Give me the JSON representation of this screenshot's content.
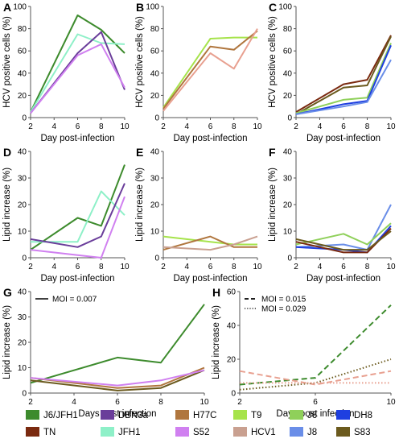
{
  "colors": {
    "J6/JFH1": "#3d8b2d",
    "DBN3a": "#6a3d9a",
    "H77C": "#b0763e",
    "T9": "#a6e34b",
    "J6": "#8fd05a",
    "DH8": "#1f3fe0",
    "TN": "#7a2a10",
    "JFH1": "#8ef0c8",
    "S52": "#d080f0",
    "HCV1": "#c9a090",
    "J8": "#6a8ee8",
    "S83": "#6b5a1e",
    "H_a": "#e8a090"
  },
  "legend": {
    "items": [
      {
        "name": "J6/JFH1",
        "key": "J6/JFH1"
      },
      {
        "name": "DBN3a",
        "key": "DBN3a"
      },
      {
        "name": "H77C",
        "key": "H77C"
      },
      {
        "name": "T9",
        "key": "T9"
      },
      {
        "name": "J6",
        "key": "J6"
      },
      {
        "name": "DH8",
        "key": "DH8"
      },
      {
        "name": "TN",
        "key": "TN"
      },
      {
        "name": "JFH1",
        "key": "JFH1"
      },
      {
        "name": "S52",
        "key": "S52"
      },
      {
        "name": "HCV1",
        "key": "HCV1"
      },
      {
        "name": "J8",
        "key": "J8"
      },
      {
        "name": "S83",
        "key": "S83"
      }
    ]
  },
  "chart_data": [
    {
      "panel": "A",
      "type": "line",
      "ylabel": "HCV positive cells (%)",
      "xlabel": "Day post-infection",
      "xlim": [
        2,
        10
      ],
      "ylim": [
        0,
        100
      ],
      "xticks": [
        2,
        4,
        6,
        8,
        10
      ],
      "yticks": [
        0,
        20,
        40,
        60,
        80,
        100
      ],
      "series": [
        {
          "key": "J6/JFH1",
          "x": [
            2,
            6,
            8,
            10
          ],
          "y": [
            5,
            92,
            79,
            58
          ]
        },
        {
          "key": "JFH1",
          "x": [
            2,
            6,
            8,
            10
          ],
          "y": [
            5,
            75,
            67,
            66
          ]
        },
        {
          "key": "DBN3a",
          "x": [
            2,
            6,
            8,
            10
          ],
          "y": [
            4,
            58,
            77,
            25
          ]
        },
        {
          "key": "S52",
          "x": [
            2,
            6,
            8,
            10
          ],
          "y": [
            4,
            56,
            66,
            27
          ]
        }
      ]
    },
    {
      "panel": "B",
      "type": "line",
      "ylabel": "HCV positive cells (%)",
      "xlabel": "Day post-infection",
      "xlim": [
        2,
        10
      ],
      "ylim": [
        0,
        100
      ],
      "xticks": [
        2,
        4,
        6,
        8,
        10
      ],
      "yticks": [
        0,
        20,
        40,
        60,
        80,
        100
      ],
      "series": [
        {
          "key": "T9",
          "x": [
            2,
            6,
            8,
            10
          ],
          "y": [
            9,
            71,
            72,
            72
          ]
        },
        {
          "key": "H77C",
          "x": [
            2,
            6,
            8,
            10
          ],
          "y": [
            8,
            64,
            61,
            78
          ]
        },
        {
          "key": "H_a",
          "x": [
            2,
            6,
            8,
            10
          ],
          "y": [
            6,
            58,
            44,
            80
          ]
        }
      ]
    },
    {
      "panel": "C",
      "type": "line",
      "ylabel": "HCV positive cells (%)",
      "xlabel": "Day post-infection",
      "xlim": [
        2,
        10
      ],
      "ylim": [
        0,
        100
      ],
      "xticks": [
        2,
        4,
        6,
        8,
        10
      ],
      "yticks": [
        0,
        20,
        40,
        60,
        80,
        100
      ],
      "series": [
        {
          "key": "TN",
          "x": [
            2,
            6,
            8,
            10
          ],
          "y": [
            5,
            30,
            34,
            74
          ]
        },
        {
          "key": "S83",
          "x": [
            2,
            6,
            8,
            10
          ],
          "y": [
            3,
            27,
            29,
            73
          ]
        },
        {
          "key": "J6",
          "x": [
            2,
            6,
            8,
            10
          ],
          "y": [
            4,
            16,
            18,
            67
          ]
        },
        {
          "key": "DH8",
          "x": [
            2,
            6,
            8,
            10
          ],
          "y": [
            3,
            12,
            15,
            65
          ]
        },
        {
          "key": "J8",
          "x": [
            2,
            6,
            8,
            10
          ],
          "y": [
            3,
            10,
            14,
            52
          ]
        }
      ]
    },
    {
      "panel": "D",
      "type": "line",
      "ylabel": "Lipid increase (%)",
      "xlabel": "Day post-infection",
      "xlim": [
        2,
        10
      ],
      "ylim": [
        0,
        40
      ],
      "xticks": [
        2,
        4,
        6,
        8,
        10
      ],
      "yticks": [
        0,
        10,
        20,
        30,
        40
      ],
      "series": [
        {
          "key": "J6/JFH1",
          "x": [
            2,
            6,
            8,
            10
          ],
          "y": [
            3,
            15,
            12,
            35
          ]
        },
        {
          "key": "JFH1",
          "x": [
            2,
            6,
            8,
            10
          ],
          "y": [
            6,
            6,
            25,
            16
          ]
        },
        {
          "key": "DBN3a",
          "x": [
            2,
            6,
            8,
            10
          ],
          "y": [
            7,
            4,
            8,
            28
          ]
        },
        {
          "key": "S52",
          "x": [
            2,
            6,
            8,
            10
          ],
          "y": [
            3,
            1,
            0,
            23
          ]
        }
      ]
    },
    {
      "panel": "E",
      "type": "line",
      "ylabel": "Lipid increase (%)",
      "xlabel": "Day post-infection",
      "xlim": [
        2,
        10
      ],
      "ylim": [
        0,
        40
      ],
      "xticks": [
        2,
        4,
        6,
        8,
        10
      ],
      "yticks": [
        0,
        10,
        20,
        30,
        40
      ],
      "series": [
        {
          "key": "T9",
          "x": [
            2,
            6,
            8,
            10
          ],
          "y": [
            8,
            6,
            5,
            5
          ]
        },
        {
          "key": "H77C",
          "x": [
            2,
            6,
            8,
            10
          ],
          "y": [
            3,
            8,
            4,
            4
          ]
        },
        {
          "key": "HCV1",
          "x": [
            2,
            6,
            8,
            10
          ],
          "y": [
            4,
            3,
            5,
            8
          ]
        }
      ]
    },
    {
      "panel": "F",
      "type": "line",
      "ylabel": "Lipid increase (%)",
      "xlabel": "Day post-infection",
      "xlim": [
        2,
        10
      ],
      "ylim": [
        0,
        40
      ],
      "xticks": [
        2,
        4,
        6,
        8,
        10
      ],
      "yticks": [
        0,
        10,
        20,
        30,
        40
      ],
      "series": [
        {
          "key": "J8",
          "x": [
            2,
            6,
            8,
            10
          ],
          "y": [
            4,
            5,
            3,
            20
          ]
        },
        {
          "key": "J6",
          "x": [
            2,
            6,
            8,
            10
          ],
          "y": [
            5,
            9,
            5,
            13
          ]
        },
        {
          "key": "DH8",
          "x": [
            2,
            6,
            8,
            10
          ],
          "y": [
            4,
            3,
            2,
            12
          ]
        },
        {
          "key": "TN",
          "x": [
            2,
            6,
            8,
            10
          ],
          "y": [
            6,
            2,
            2,
            11
          ]
        },
        {
          "key": "S83",
          "x": [
            2,
            6,
            8,
            10
          ],
          "y": [
            7,
            3,
            3,
            10
          ]
        }
      ]
    },
    {
      "panel": "G",
      "type": "line",
      "ylabel": "Lipid increase (%)",
      "xlabel": "Days post infection",
      "xlim": [
        2,
        10
      ],
      "ylim": [
        0,
        40
      ],
      "xticks": [
        2,
        4,
        6,
        8,
        10
      ],
      "yticks": [
        0,
        10,
        20,
        30,
        40
      ],
      "annotation": "MOI = 0.007",
      "series": [
        {
          "key": "J6/JFH1",
          "x": [
            2,
            6,
            8,
            10
          ],
          "y": [
            4,
            14,
            12,
            35
          ]
        },
        {
          "key": "S83",
          "x": [
            2,
            6,
            8,
            10
          ],
          "y": [
            5,
            1,
            2,
            9
          ]
        },
        {
          "key": "H77C",
          "x": [
            2,
            6,
            8,
            10
          ],
          "y": [
            6,
            2,
            3,
            10
          ]
        },
        {
          "key": "S52",
          "x": [
            2,
            6,
            8,
            10
          ],
          "y": [
            6,
            3,
            5,
            9
          ]
        }
      ]
    },
    {
      "panel": "H",
      "type": "line",
      "ylabel": "Lipid increase (%)",
      "xlabel": "Days post infection",
      "xlim": [
        2,
        10
      ],
      "ylim": [
        0,
        60
      ],
      "xticks": [
        2,
        6,
        10
      ],
      "yticks": [
        0,
        20,
        40,
        60
      ],
      "annotations": [
        "MOI = 0.015",
        "MOI = 0.029"
      ],
      "series": [
        {
          "key": "J6/JFH1",
          "dash": "dashed",
          "x": [
            2,
            6,
            10
          ],
          "y": [
            5,
            9,
            52
          ]
        },
        {
          "key": "H_a",
          "dash": "dashed",
          "x": [
            2,
            6,
            10
          ],
          "y": [
            13,
            5,
            13
          ]
        },
        {
          "key": "S83",
          "dash": "dotted",
          "x": [
            2,
            6,
            10
          ],
          "y": [
            2,
            6,
            20
          ]
        },
        {
          "key": "H_a",
          "dash": "dotted",
          "x": [
            2,
            6,
            10
          ],
          "y": [
            6,
            6,
            6
          ]
        }
      ]
    }
  ]
}
